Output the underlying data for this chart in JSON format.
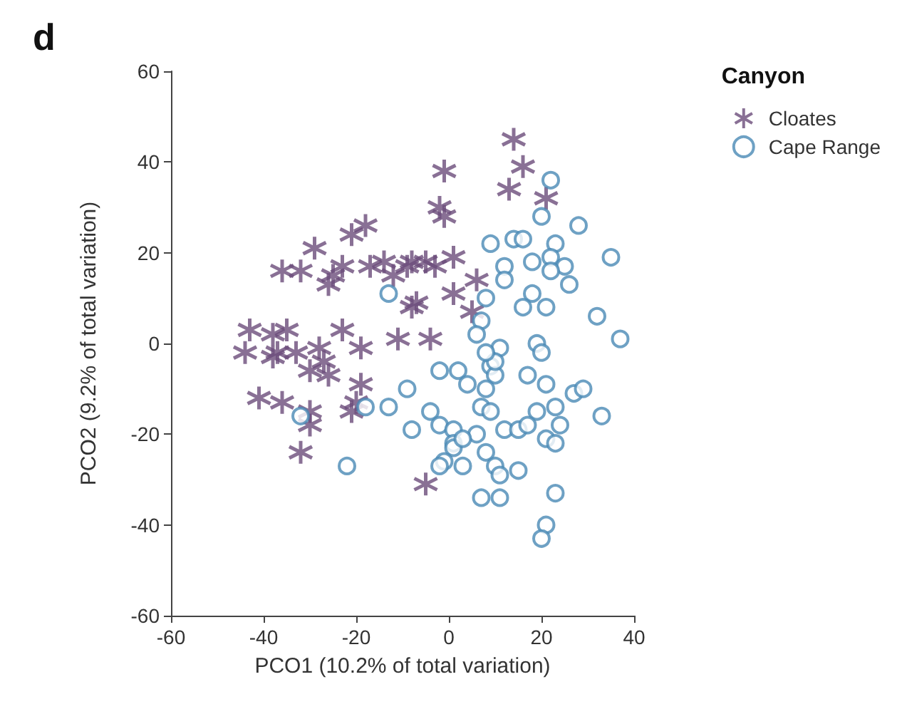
{
  "chart_data": {
    "type": "scatter",
    "title": "d",
    "xlabel": "PCO1 (10.2% of total variation)",
    "ylabel": "PCO2 (9.2% of total variation)",
    "legend_title": "Canyon",
    "legend": "top right",
    "grid": false,
    "xlim": [
      -60,
      40
    ],
    "xticks": [
      -60,
      -40,
      -20,
      0,
      20,
      40
    ],
    "ylim": [
      -60,
      60
    ],
    "yticks": [
      -60,
      -40,
      -20,
      0,
      20,
      40,
      60
    ],
    "series": [
      {
        "name": "Cloates",
        "color": "#6b4c7a",
        "marker": "cross",
        "x": [
          14,
          16,
          13,
          21,
          -1,
          -2,
          -1,
          -18,
          -21,
          -29,
          -36,
          -32,
          -26,
          -25,
          -23,
          -17,
          -14,
          -9,
          -8,
          -5,
          -3,
          1,
          -12,
          -7,
          -8,
          6,
          5,
          -4,
          -11,
          1,
          -43,
          -44,
          -38,
          -35,
          -37,
          -33,
          -23,
          -28,
          -27,
          -26,
          -30,
          -19,
          -19,
          -41,
          -36,
          -30,
          -21,
          -30,
          -32,
          -5,
          -20,
          -38
        ],
        "values": [
          45,
          39,
          34,
          32,
          38,
          30,
          28,
          26,
          24,
          21,
          16,
          16,
          13,
          15,
          17,
          17,
          18,
          17,
          18,
          18,
          17,
          19,
          15,
          9,
          8,
          14,
          7,
          1,
          1,
          11,
          3,
          -2,
          2,
          3,
          -2,
          -2,
          3,
          -1,
          -4,
          -7,
          -6,
          -1,
          -9,
          -12,
          -13,
          -15,
          -15,
          -18,
          -24,
          -31,
          -13,
          -3
        ]
      },
      {
        "name": "Cape Range",
        "color": "#4a8ab5",
        "marker": "circle",
        "x": [
          22,
          20,
          28,
          35,
          37,
          32,
          9,
          14,
          16,
          23,
          18,
          22,
          25,
          22,
          26,
          12,
          12,
          18,
          16,
          21,
          8,
          7,
          6,
          11,
          19,
          20,
          9,
          10,
          -2,
          2,
          4,
          8,
          17,
          21,
          27,
          29,
          7,
          9,
          -4,
          19,
          23,
          33,
          -8,
          -2,
          1,
          6,
          12,
          15,
          17,
          21,
          24,
          23,
          1,
          1,
          -1,
          -2,
          3,
          8,
          10,
          11,
          15,
          7,
          11,
          23,
          21,
          20,
          -9,
          -13,
          -32,
          -18,
          -13,
          -22,
          10,
          8,
          3
        ],
        "values": [
          36,
          28,
          26,
          19,
          1,
          6,
          22,
          23,
          23,
          22,
          18,
          19,
          17,
          16,
          13,
          17,
          14,
          11,
          8,
          8,
          10,
          5,
          2,
          -1,
          0,
          -2,
          -5,
          -7,
          -6,
          -6,
          -9,
          -10,
          -7,
          -9,
          -11,
          -10,
          -14,
          -15,
          -15,
          -15,
          -14,
          -16,
          -19,
          -18,
          -19,
          -20,
          -19,
          -19,
          -18,
          -21,
          -18,
          -22,
          -22,
          -23,
          -26,
          -27,
          -27,
          -24,
          -27,
          -29,
          -28,
          -34,
          -34,
          -33,
          -40,
          -43,
          -10,
          11,
          -16,
          -14,
          -14,
          -27,
          -4,
          -2,
          -21
        ]
      }
    ]
  }
}
